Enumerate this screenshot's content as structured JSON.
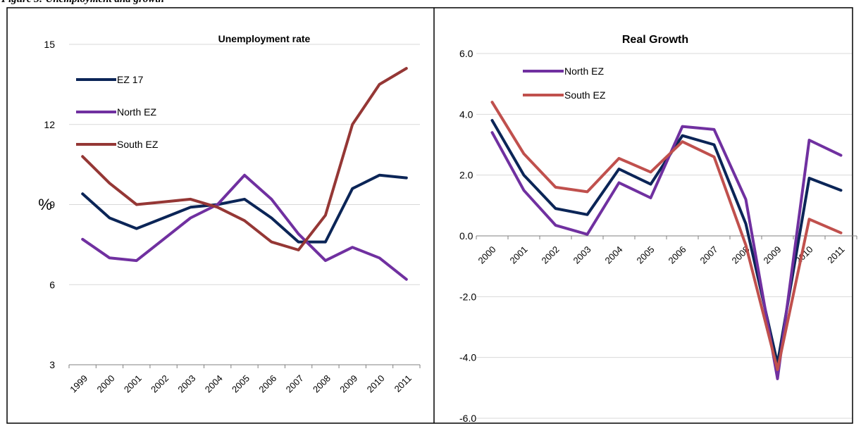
{
  "caption": "Figure 3: Unemployment and growth",
  "chart_data": [
    {
      "type": "line",
      "title": "Unemployment rate",
      "xlabel": "",
      "ylabel": "%",
      "ylim": [
        3,
        15
      ],
      "yticks": [
        3,
        6,
        9,
        12,
        15
      ],
      "categories": [
        "1999",
        "2000",
        "2001",
        "2002",
        "2003",
        "2004",
        "2005",
        "2006",
        "2007",
        "2008",
        "2009",
        "2010",
        "2011"
      ],
      "grid": "horizontal",
      "legend": "top-left",
      "series": [
        {
          "name": "EZ 17",
          "color": "#0b2557",
          "values": [
            9.4,
            8.5,
            8.1,
            8.5,
            8.9,
            9.0,
            9.2,
            8.5,
            7.6,
            7.6,
            9.6,
            10.1,
            10.0
          ]
        },
        {
          "name": "North EZ",
          "color": "#7030a0",
          "values": [
            7.7,
            7.0,
            6.9,
            7.7,
            8.5,
            9.0,
            10.1,
            9.2,
            7.9,
            6.9,
            7.4,
            7.0,
            6.2
          ]
        },
        {
          "name": "South EZ",
          "color": "#953735",
          "values": [
            10.8,
            9.8,
            9.0,
            9.1,
            9.2,
            8.9,
            8.4,
            7.6,
            7.3,
            8.6,
            12.0,
            13.5,
            14.1
          ]
        }
      ]
    },
    {
      "type": "line",
      "title": "Real Growth",
      "xlabel": "",
      "ylabel": "",
      "ylim": [
        -6,
        6
      ],
      "yticks": [
        "-6.0",
        "-4.0",
        "-2.0",
        "0.0",
        "2.0",
        "4.0",
        "6.0"
      ],
      "categories": [
        "2000",
        "2001",
        "2002",
        "2003",
        "2004",
        "2005",
        "2006",
        "2007",
        "2008",
        "2009",
        "2010",
        "2011"
      ],
      "grid": "horizontal",
      "legend": "top-left",
      "series": [
        {
          "name": "",
          "color": "#0b2557",
          "values": [
            3.8,
            2.0,
            0.9,
            0.7,
            2.2,
            1.7,
            3.3,
            3.0,
            0.4,
            -4.2,
            1.9,
            1.5
          ]
        },
        {
          "name": "North EZ",
          "color": "#7030a0",
          "values": [
            3.4,
            1.5,
            0.35,
            0.05,
            1.75,
            1.25,
            3.6,
            3.5,
            1.2,
            -4.7,
            3.15,
            2.65
          ]
        },
        {
          "name": "South EZ",
          "color": "#c0504d",
          "values": [
            4.4,
            2.7,
            1.6,
            1.45,
            2.55,
            2.1,
            3.1,
            2.6,
            -0.3,
            -4.4,
            0.55,
            0.1
          ]
        }
      ]
    }
  ]
}
